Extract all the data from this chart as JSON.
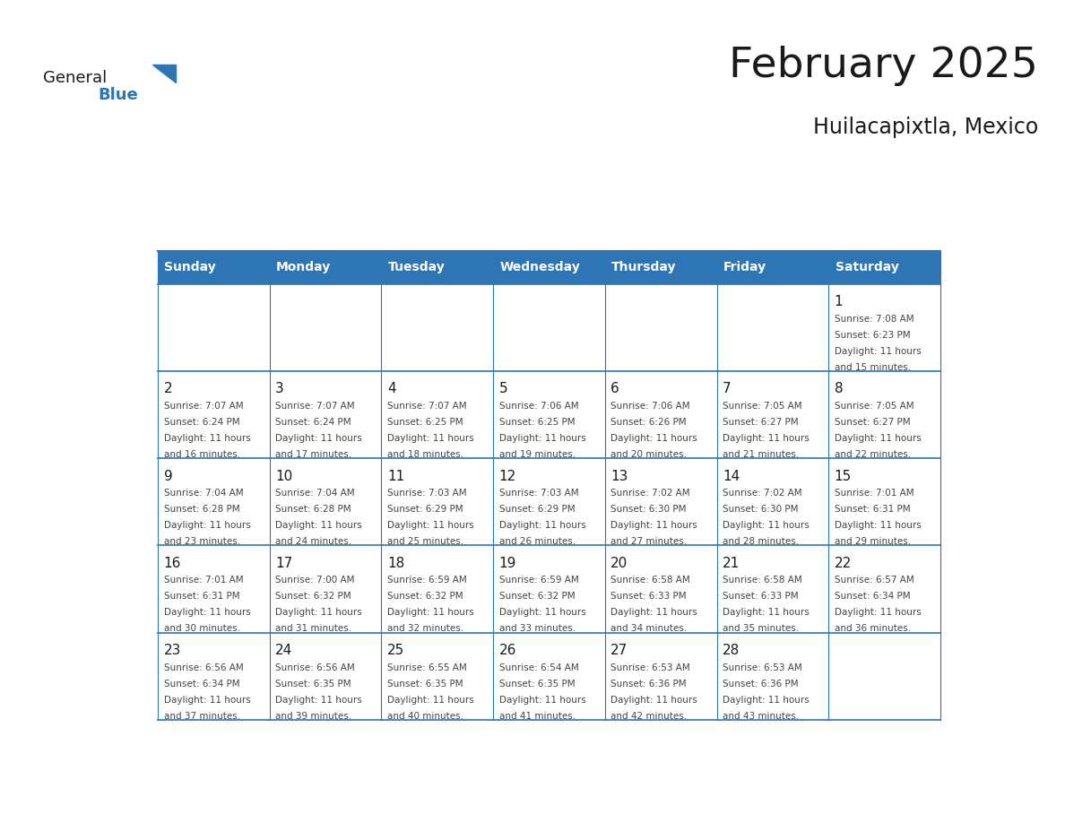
{
  "title": "February 2025",
  "subtitle": "Huilacapixtla, Mexico",
  "header_bg": "#2E75B6",
  "header_text_color": "#FFFFFF",
  "border_color": "#2E75B6",
  "day_names": [
    "Sunday",
    "Monday",
    "Tuesday",
    "Wednesday",
    "Thursday",
    "Friday",
    "Saturday"
  ],
  "title_color": "#1a1a1a",
  "subtitle_color": "#1a1a1a",
  "cell_text_color": "#444444",
  "day_num_color": "#1a1a1a",
  "logo_triangle_color": "#2E75B6",
  "logo_general_color": "#1a1a1a",
  "logo_blue_color": "#2E75B6",
  "days": [
    {
      "date": 1,
      "col": 6,
      "row": 0,
      "sunrise": "7:08 AM",
      "sunset": "6:23 PM",
      "daylight_hours": 11,
      "daylight_minutes": 15
    },
    {
      "date": 2,
      "col": 0,
      "row": 1,
      "sunrise": "7:07 AM",
      "sunset": "6:24 PM",
      "daylight_hours": 11,
      "daylight_minutes": 16
    },
    {
      "date": 3,
      "col": 1,
      "row": 1,
      "sunrise": "7:07 AM",
      "sunset": "6:24 PM",
      "daylight_hours": 11,
      "daylight_minutes": 17
    },
    {
      "date": 4,
      "col": 2,
      "row": 1,
      "sunrise": "7:07 AM",
      "sunset": "6:25 PM",
      "daylight_hours": 11,
      "daylight_minutes": 18
    },
    {
      "date": 5,
      "col": 3,
      "row": 1,
      "sunrise": "7:06 AM",
      "sunset": "6:25 PM",
      "daylight_hours": 11,
      "daylight_minutes": 19
    },
    {
      "date": 6,
      "col": 4,
      "row": 1,
      "sunrise": "7:06 AM",
      "sunset": "6:26 PM",
      "daylight_hours": 11,
      "daylight_minutes": 20
    },
    {
      "date": 7,
      "col": 5,
      "row": 1,
      "sunrise": "7:05 AM",
      "sunset": "6:27 PM",
      "daylight_hours": 11,
      "daylight_minutes": 21
    },
    {
      "date": 8,
      "col": 6,
      "row": 1,
      "sunrise": "7:05 AM",
      "sunset": "6:27 PM",
      "daylight_hours": 11,
      "daylight_minutes": 22
    },
    {
      "date": 9,
      "col": 0,
      "row": 2,
      "sunrise": "7:04 AM",
      "sunset": "6:28 PM",
      "daylight_hours": 11,
      "daylight_minutes": 23
    },
    {
      "date": 10,
      "col": 1,
      "row": 2,
      "sunrise": "7:04 AM",
      "sunset": "6:28 PM",
      "daylight_hours": 11,
      "daylight_minutes": 24
    },
    {
      "date": 11,
      "col": 2,
      "row": 2,
      "sunrise": "7:03 AM",
      "sunset": "6:29 PM",
      "daylight_hours": 11,
      "daylight_minutes": 25
    },
    {
      "date": 12,
      "col": 3,
      "row": 2,
      "sunrise": "7:03 AM",
      "sunset": "6:29 PM",
      "daylight_hours": 11,
      "daylight_minutes": 26
    },
    {
      "date": 13,
      "col": 4,
      "row": 2,
      "sunrise": "7:02 AM",
      "sunset": "6:30 PM",
      "daylight_hours": 11,
      "daylight_minutes": 27
    },
    {
      "date": 14,
      "col": 5,
      "row": 2,
      "sunrise": "7:02 AM",
      "sunset": "6:30 PM",
      "daylight_hours": 11,
      "daylight_minutes": 28
    },
    {
      "date": 15,
      "col": 6,
      "row": 2,
      "sunrise": "7:01 AM",
      "sunset": "6:31 PM",
      "daylight_hours": 11,
      "daylight_minutes": 29
    },
    {
      "date": 16,
      "col": 0,
      "row": 3,
      "sunrise": "7:01 AM",
      "sunset": "6:31 PM",
      "daylight_hours": 11,
      "daylight_minutes": 30
    },
    {
      "date": 17,
      "col": 1,
      "row": 3,
      "sunrise": "7:00 AM",
      "sunset": "6:32 PM",
      "daylight_hours": 11,
      "daylight_minutes": 31
    },
    {
      "date": 18,
      "col": 2,
      "row": 3,
      "sunrise": "6:59 AM",
      "sunset": "6:32 PM",
      "daylight_hours": 11,
      "daylight_minutes": 32
    },
    {
      "date": 19,
      "col": 3,
      "row": 3,
      "sunrise": "6:59 AM",
      "sunset": "6:32 PM",
      "daylight_hours": 11,
      "daylight_minutes": 33
    },
    {
      "date": 20,
      "col": 4,
      "row": 3,
      "sunrise": "6:58 AM",
      "sunset": "6:33 PM",
      "daylight_hours": 11,
      "daylight_minutes": 34
    },
    {
      "date": 21,
      "col": 5,
      "row": 3,
      "sunrise": "6:58 AM",
      "sunset": "6:33 PM",
      "daylight_hours": 11,
      "daylight_minutes": 35
    },
    {
      "date": 22,
      "col": 6,
      "row": 3,
      "sunrise": "6:57 AM",
      "sunset": "6:34 PM",
      "daylight_hours": 11,
      "daylight_minutes": 36
    },
    {
      "date": 23,
      "col": 0,
      "row": 4,
      "sunrise": "6:56 AM",
      "sunset": "6:34 PM",
      "daylight_hours": 11,
      "daylight_minutes": 37
    },
    {
      "date": 24,
      "col": 1,
      "row": 4,
      "sunrise": "6:56 AM",
      "sunset": "6:35 PM",
      "daylight_hours": 11,
      "daylight_minutes": 39
    },
    {
      "date": 25,
      "col": 2,
      "row": 4,
      "sunrise": "6:55 AM",
      "sunset": "6:35 PM",
      "daylight_hours": 11,
      "daylight_minutes": 40
    },
    {
      "date": 26,
      "col": 3,
      "row": 4,
      "sunrise": "6:54 AM",
      "sunset": "6:35 PM",
      "daylight_hours": 11,
      "daylight_minutes": 41
    },
    {
      "date": 27,
      "col": 4,
      "row": 4,
      "sunrise": "6:53 AM",
      "sunset": "6:36 PM",
      "daylight_hours": 11,
      "daylight_minutes": 42
    },
    {
      "date": 28,
      "col": 5,
      "row": 4,
      "sunrise": "6:53 AM",
      "sunset": "6:36 PM",
      "daylight_hours": 11,
      "daylight_minutes": 43
    }
  ]
}
